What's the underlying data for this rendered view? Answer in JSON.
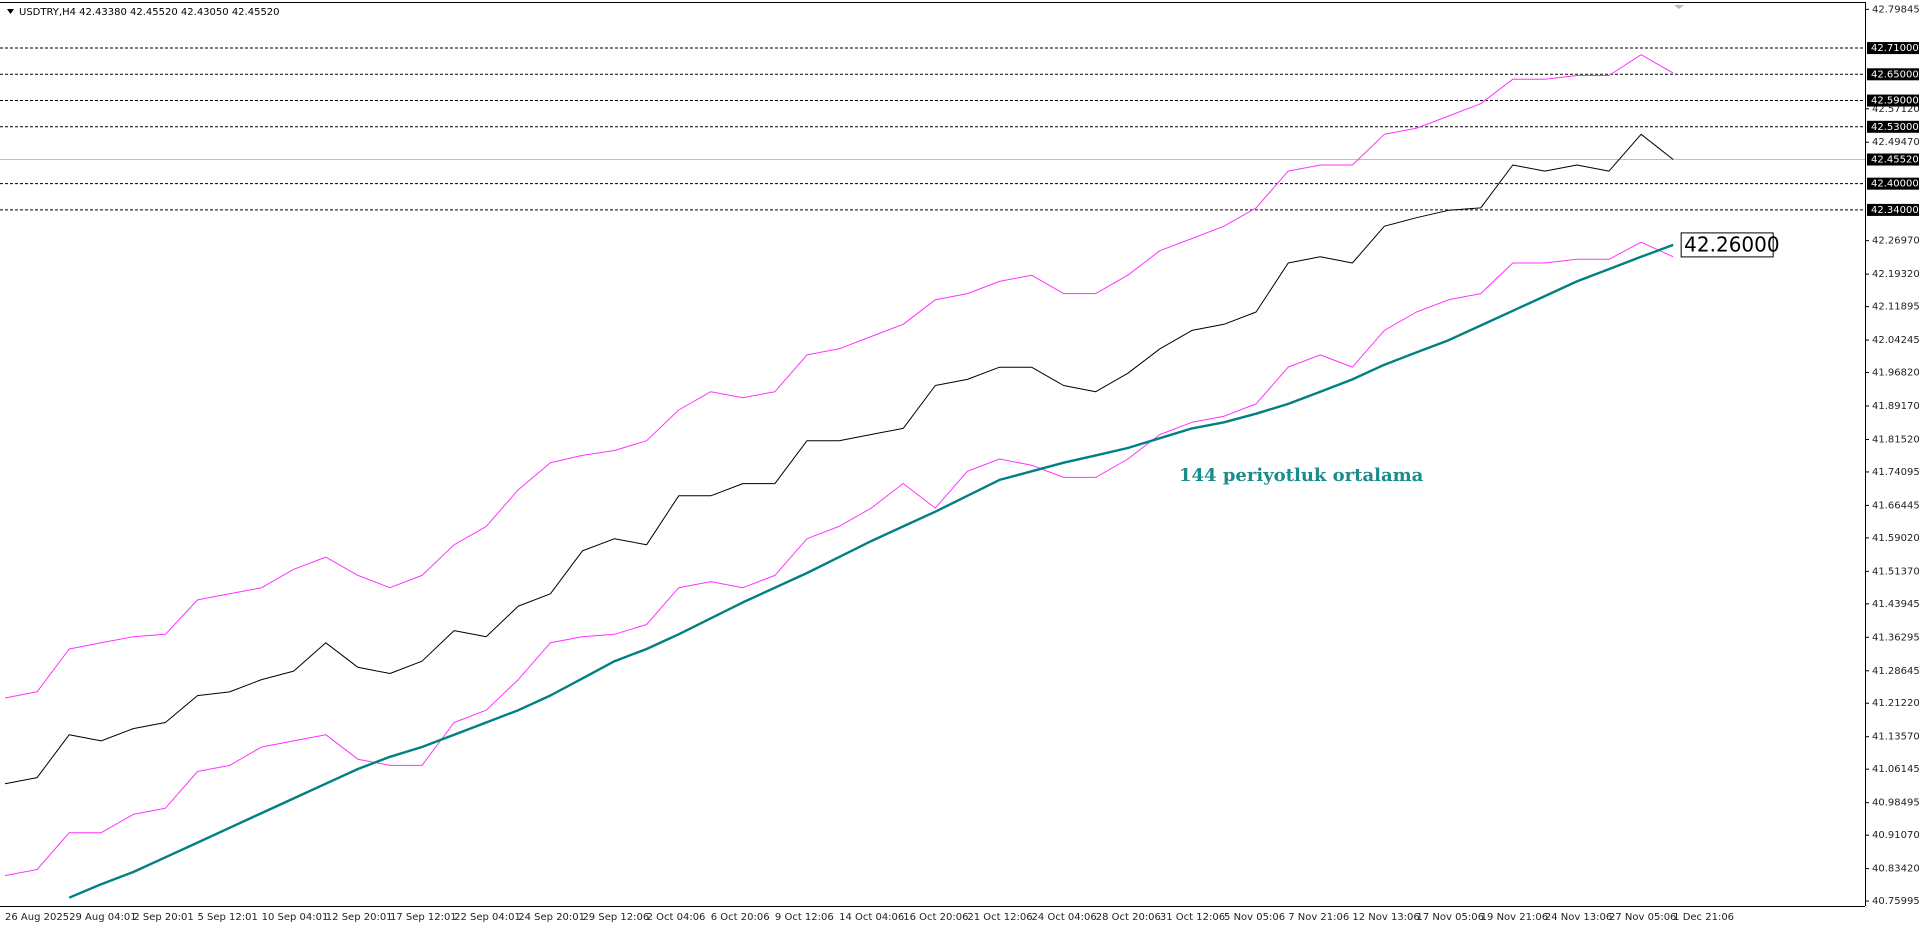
{
  "chart_data": {
    "type": "line",
    "title": "USDTRY,H4  42.43380 42.45520 42.43050 42.45520",
    "annotation": "144 periyotluk ortalama",
    "categories": [
      "26 Aug 2025",
      null,
      "29 Aug 04:01",
      null,
      "2 Sep 20:01",
      null,
      "5 Sep 12:01",
      null,
      "10 Sep 04:01",
      null,
      "12 Sep 20:01",
      null,
      "17 Sep 12:01",
      null,
      "22 Sep 04:01",
      null,
      "24 Sep 20:01",
      null,
      "29 Sep 12:06",
      null,
      "2 Oct 04:06",
      null,
      "6 Oct 20:06",
      null,
      "9 Oct 12:06",
      null,
      "14 Oct 04:06",
      null,
      "16 Oct 20:06",
      null,
      "21 Oct 12:06",
      null,
      "24 Oct 04:06",
      null,
      "28 Oct 20:06",
      null,
      "31 Oct 12:06",
      null,
      "5 Nov 05:06",
      null,
      "7 Nov 21:06",
      null,
      "12 Nov 13:06",
      null,
      "17 Nov 05:06",
      null,
      "19 Nov 21:06",
      null,
      "24 Nov 13:06",
      null,
      "27 Nov 05:06",
      null,
      "1 Dec 21:06"
    ],
    "series": [
      {
        "color": "#000000",
        "width": 1,
        "values": [
          41.0282,
          41.0422,
          41.1402,
          41.1262,
          41.1542,
          41.1682,
          41.2298,
          41.2382,
          41.2662,
          41.2858,
          41.3503,
          41.2943,
          41.2803,
          41.3083,
          41.3783,
          41.3643,
          41.4343,
          41.4623,
          41.5604,
          41.5884,
          41.5744,
          41.6864,
          41.6864,
          41.7144,
          41.7144,
          41.8125,
          41.8125,
          41.8265,
          41.8405,
          41.9385,
          41.9525,
          41.9805,
          41.9805,
          41.9385,
          41.9245,
          41.9665,
          42.0226,
          42.0646,
          42.0786,
          42.1066,
          42.2187,
          42.2327,
          42.2187,
          42.3027,
          42.3223,
          42.3391,
          42.3447,
          42.4427,
          42.4287,
          42.4427,
          42.4287,
          42.5128,
          42.4552
        ]
      },
      {
        "color": "#ff33ff",
        "width": 1,
        "values": [
          41.2243,
          41.2383,
          41.3363,
          41.3503,
          41.3643,
          41.3699,
          41.4484,
          41.4624,
          41.4764,
          41.5184,
          41.5464,
          41.5044,
          41.4764,
          41.5044,
          41.5744,
          41.6164,
          41.7005,
          41.7621,
          41.7789,
          41.7901,
          41.8125,
          41.8825,
          41.9245,
          41.9105,
          41.9245,
          42.0086,
          42.0226,
          42.0506,
          42.0786,
          42.1346,
          42.1486,
          42.1766,
          42.1907,
          42.1486,
          42.1486,
          42.1907,
          42.2467,
          42.2747,
          42.3027,
          42.3447,
          42.4287,
          42.4427,
          42.4427,
          42.5128,
          42.5268,
          42.5548,
          42.5828,
          42.6388,
          42.6388,
          42.6472,
          42.6472,
          42.6948,
          42.6528
        ]
      },
      {
        "color": "#ff33ff",
        "width": 1,
        "values": [
          40.8181,
          40.8321,
          40.9162,
          40.9162,
          40.9582,
          40.9722,
          41.0562,
          41.0702,
          41.1122,
          41.1262,
          41.1402,
          41.0842,
          41.0702,
          41.0702,
          41.1682,
          41.1963,
          41.2663,
          41.3503,
          41.3643,
          41.3699,
          41.3923,
          41.4764,
          41.4904,
          41.4764,
          41.5044,
          41.5884,
          41.6164,
          41.6584,
          41.7145,
          41.6584,
          41.7425,
          41.7705,
          41.7565,
          41.7285,
          41.7285,
          41.7705,
          41.8265,
          41.8545,
          41.8685,
          41.8965,
          41.9806,
          42.0086,
          41.9806,
          42.0646,
          42.1066,
          42.1346,
          42.1486,
          42.2187,
          42.2187,
          42.2271,
          42.2271,
          42.2663,
          42.2327
        ]
      },
      {
        "color": "#008080",
        "width": 2.4,
        "end_label": "42.26000",
        "values": [
          null,
          null,
          40.7677,
          40.7985,
          40.8265,
          40.8601,
          40.8937,
          40.9274,
          40.961,
          40.9946,
          41.0282,
          41.0618,
          41.0898,
          41.1122,
          41.1402,
          41.1682,
          41.1963,
          41.2299,
          41.2691,
          41.3083,
          41.3363,
          41.3699,
          41.4063,
          41.4428,
          41.4764,
          41.51,
          41.5464,
          41.5828,
          41.6164,
          41.65,
          41.6865,
          41.7229,
          41.7425,
          41.7621,
          41.7789,
          41.7957,
          41.8181,
          41.8405,
          41.8545,
          41.8741,
          41.8965,
          41.9245,
          41.9526,
          41.9862,
          42.0142,
          42.0422,
          42.0758,
          42.1094,
          42.143,
          42.1766,
          42.2047,
          42.2327,
          42.26
        ]
      }
    ],
    "ylim": [
      40.7487,
      42.8153
    ],
    "yticks": [
      42.79845,
      {
        "value": 42.5712,
        "label": "42.57120"
      },
      {
        "value": 42.4947,
        "label": "42.49470"
      },
      {
        "value": 42.2697,
        "label": "42.26970"
      },
      {
        "value": 42.1932,
        "label": "42.19320"
      },
      42.11895,
      42.04245,
      {
        "value": 41.9682,
        "label": "41.96820"
      },
      {
        "value": 41.8917,
        "label": "41.89170"
      },
      {
        "value": 41.8152,
        "label": "41.81520"
      },
      41.74095,
      41.66445,
      {
        "value": 41.5902,
        "label": "41.59020"
      },
      {
        "value": 41.5137,
        "label": "41.51370"
      },
      41.43945,
      41.36295,
      41.28645,
      {
        "value": 41.2122,
        "label": "41.21220"
      },
      {
        "value": 41.1357,
        "label": "41.13570"
      },
      41.06145,
      40.98495,
      {
        "value": 40.9107,
        "label": "40.91070"
      },
      {
        "value": 40.8342,
        "label": "40.83420"
      },
      40.75995
    ],
    "levels": [
      {
        "value": 42.71,
        "label": "42.71000",
        "dashed": true
      },
      {
        "value": 42.65,
        "label": "42.65000",
        "dashed": true
      },
      {
        "value": 42.59,
        "label": "42.59000",
        "dashed": true
      },
      {
        "value": 42.53,
        "label": "42.53000",
        "dashed": true
      },
      {
        "value": 42.4552,
        "label": "42.45520",
        "dashed": false
      },
      {
        "value": 42.4,
        "label": "42.40000",
        "dashed": true
      },
      {
        "value": 42.34,
        "label": "42.34000",
        "dashed": true
      }
    ],
    "grid": false
  }
}
